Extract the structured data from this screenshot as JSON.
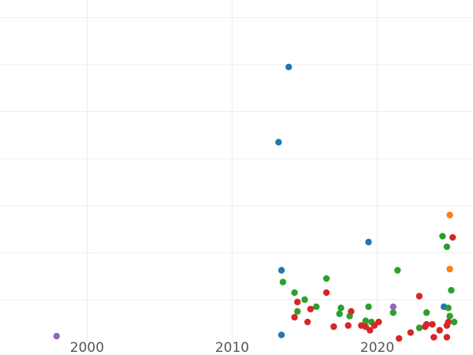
{
  "chart_data": {
    "type": "scatter",
    "title": "",
    "xlabel": "",
    "ylabel": "",
    "xlim": [
      1994.0,
      2026.6
    ],
    "ylim": [
      -1.5,
      27.5
    ],
    "grid": true,
    "legend": "none",
    "x_ticks": [
      2000,
      2010,
      2020
    ],
    "x_tick_labels": [
      "2000",
      "2010",
      "2020"
    ],
    "y_gridlines": [
      2,
      6,
      10,
      14,
      18,
      22,
      26
    ],
    "series": [
      {
        "color": "#1f77b4",
        "points": [
          {
            "x": 2013.9,
            "y": 21.8
          },
          {
            "x": 2013.2,
            "y": 15.4
          },
          {
            "x": 2019.4,
            "y": 6.9
          },
          {
            "x": 2013.4,
            "y": 4.5
          },
          {
            "x": 2013.4,
            "y": -1.0
          },
          {
            "x": 2024.6,
            "y": 1.4
          }
        ]
      },
      {
        "color": "#2ca02c",
        "points": [
          {
            "x": 2013.5,
            "y": 3.5
          },
          {
            "x": 2014.3,
            "y": 2.6
          },
          {
            "x": 2015.0,
            "y": 2.0
          },
          {
            "x": 2014.5,
            "y": 1.0
          },
          {
            "x": 2015.8,
            "y": 1.4
          },
          {
            "x": 2016.5,
            "y": 3.8
          },
          {
            "x": 2017.5,
            "y": 1.3
          },
          {
            "x": 2017.4,
            "y": 0.8
          },
          {
            "x": 2018.1,
            "y": 0.6
          },
          {
            "x": 2019.2,
            "y": 0.2
          },
          {
            "x": 2019.4,
            "y": 1.4
          },
          {
            "x": 2019.6,
            "y": 0.1
          },
          {
            "x": 2021.1,
            "y": 0.9
          },
          {
            "x": 2021.4,
            "y": 4.5
          },
          {
            "x": 2022.9,
            "y": -0.4
          },
          {
            "x": 2023.4,
            "y": 0.9
          },
          {
            "x": 2024.5,
            "y": 7.4
          },
          {
            "x": 2024.8,
            "y": 6.5
          },
          {
            "x": 2025.1,
            "y": 2.8
          },
          {
            "x": 2025.0,
            "y": 0.6
          },
          {
            "x": 2025.3,
            "y": 0.1
          },
          {
            "x": 2024.9,
            "y": 1.3
          }
        ]
      },
      {
        "color": "#d62728",
        "points": [
          {
            "x": 2014.3,
            "y": 0.5
          },
          {
            "x": 2014.5,
            "y": 1.8
          },
          {
            "x": 2015.2,
            "y": 0.1
          },
          {
            "x": 2015.4,
            "y": 1.2
          },
          {
            "x": 2016.5,
            "y": 2.6
          },
          {
            "x": 2017.0,
            "y": -0.3
          },
          {
            "x": 2018.0,
            "y": -0.2
          },
          {
            "x": 2018.2,
            "y": 1.0
          },
          {
            "x": 2018.9,
            "y": -0.2
          },
          {
            "x": 2019.2,
            "y": -0.3
          },
          {
            "x": 2019.5,
            "y": -0.6
          },
          {
            "x": 2019.8,
            "y": -0.2
          },
          {
            "x": 2020.1,
            "y": 0.1
          },
          {
            "x": 2021.5,
            "y": -1.3
          },
          {
            "x": 2022.3,
            "y": -0.8
          },
          {
            "x": 2022.9,
            "y": 2.3
          },
          {
            "x": 2023.3,
            "y": -0.3
          },
          {
            "x": 2023.4,
            "y": -0.1
          },
          {
            "x": 2023.8,
            "y": -0.1
          },
          {
            "x": 2023.9,
            "y": -1.2
          },
          {
            "x": 2024.3,
            "y": -0.6
          },
          {
            "x": 2024.8,
            "y": -1.2
          },
          {
            "x": 2024.8,
            "y": -0.2
          },
          {
            "x": 2024.9,
            "y": 0.1
          },
          {
            "x": 2025.2,
            "y": 7.3
          }
        ]
      },
      {
        "color": "#ff7f0e",
        "points": [
          {
            "x": 2025.0,
            "y": 9.2
          },
          {
            "x": 2025.0,
            "y": 4.6
          }
        ]
      },
      {
        "color": "#9467bd",
        "points": [
          {
            "x": 1997.9,
            "y": -1.1
          },
          {
            "x": 2021.1,
            "y": 1.4
          }
        ]
      }
    ]
  }
}
